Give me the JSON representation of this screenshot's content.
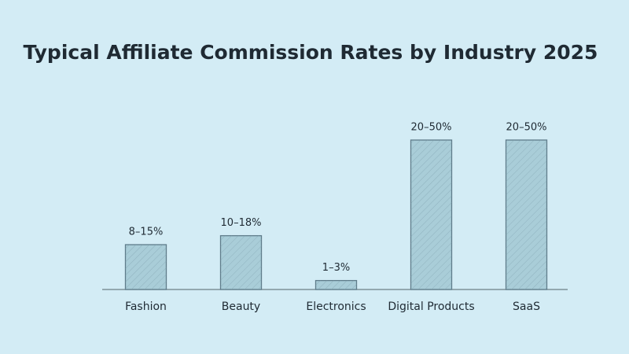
{
  "chart_data": {
    "type": "bar",
    "title": "Typical Affiliate Commission Rates by Industry 2025",
    "categories": [
      "Fashion",
      "Beauty",
      "Electronics",
      "Digital Products",
      "SaaS"
    ],
    "values": [
      15,
      18,
      3,
      50,
      50
    ],
    "value_labels": [
      "8–15%",
      "10–18%",
      "1–3%",
      "20–50%",
      "20–50%"
    ],
    "color": "#a9cdd8"
  }
}
